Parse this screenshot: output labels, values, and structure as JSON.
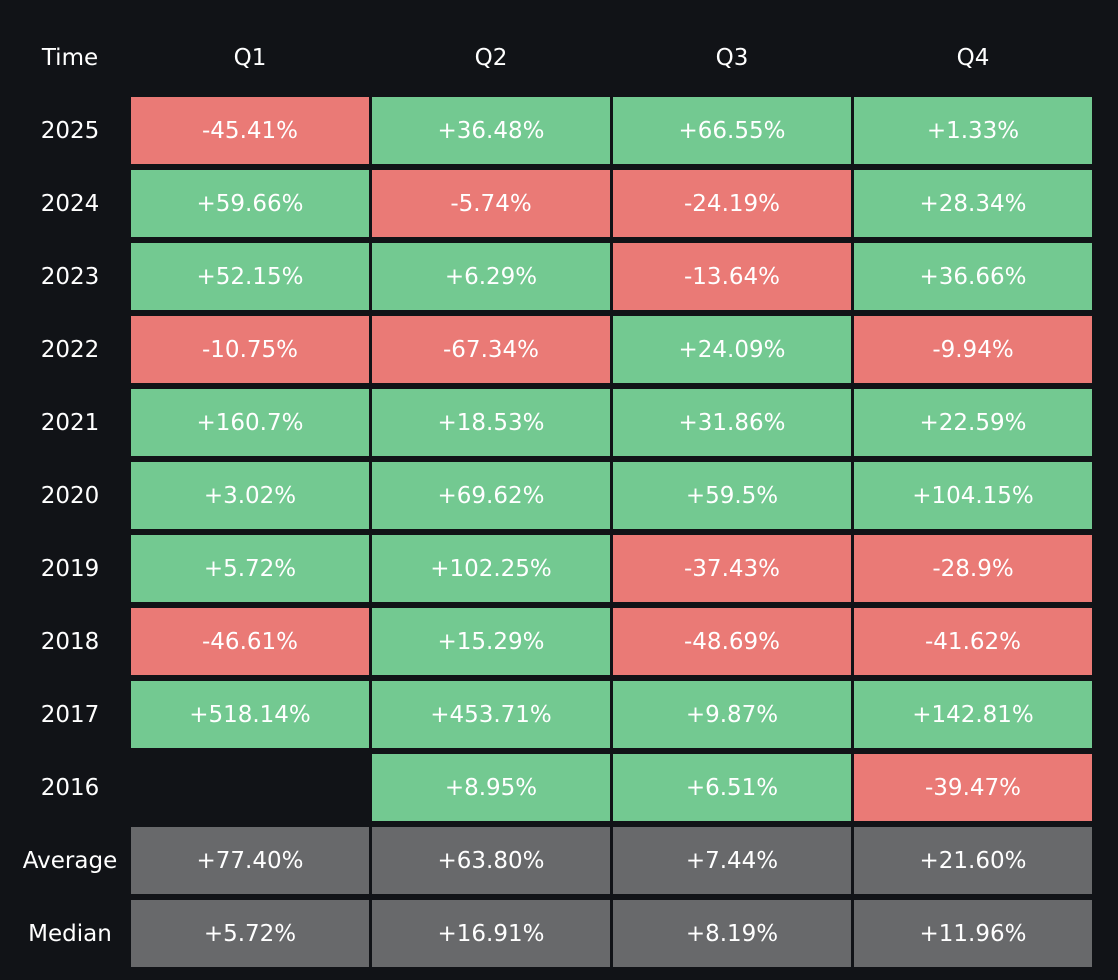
{
  "table": {
    "header": [
      "Time",
      "Q1",
      "Q2",
      "Q3",
      "Q4"
    ],
    "rows": [
      {
        "label": "2025",
        "cells": [
          "-45.41%",
          "+36.48%",
          "+66.55%",
          "+1.33%"
        ]
      },
      {
        "label": "2024",
        "cells": [
          "+59.66%",
          "-5.74%",
          "-24.19%",
          "+28.34%"
        ]
      },
      {
        "label": "2023",
        "cells": [
          "+52.15%",
          "+6.29%",
          "-13.64%",
          "+36.66%"
        ]
      },
      {
        "label": "2022",
        "cells": [
          "-10.75%",
          "-67.34%",
          "+24.09%",
          "-9.94%"
        ]
      },
      {
        "label": "2021",
        "cells": [
          "+160.7%",
          "+18.53%",
          "+31.86%",
          "+22.59%"
        ]
      },
      {
        "label": "2020",
        "cells": [
          "+3.02%",
          "+69.62%",
          "+59.5%",
          "+104.15%"
        ]
      },
      {
        "label": "2019",
        "cells": [
          "+5.72%",
          "+102.25%",
          "-37.43%",
          "-28.9%"
        ]
      },
      {
        "label": "2018",
        "cells": [
          "-46.61%",
          "+15.29%",
          "-48.69%",
          "-41.62%"
        ]
      },
      {
        "label": "2017",
        "cells": [
          "+518.14%",
          "+453.71%",
          "+9.87%",
          "+142.81%"
        ]
      },
      {
        "label": "2016",
        "cells": [
          null,
          "+8.95%",
          "+6.51%",
          "-39.47%"
        ]
      }
    ],
    "summary_rows": [
      {
        "label": "Average",
        "cells": [
          "+77.40%",
          "+63.80%",
          "+7.44%",
          "+21.60%"
        ]
      },
      {
        "label": "Median",
        "cells": [
          "+5.72%",
          "+16.91%",
          "+8.19%",
          "+11.96%"
        ]
      }
    ],
    "colors": {
      "up": "#73c991",
      "down": "#ea7a76",
      "summary": "#68696b"
    }
  }
}
